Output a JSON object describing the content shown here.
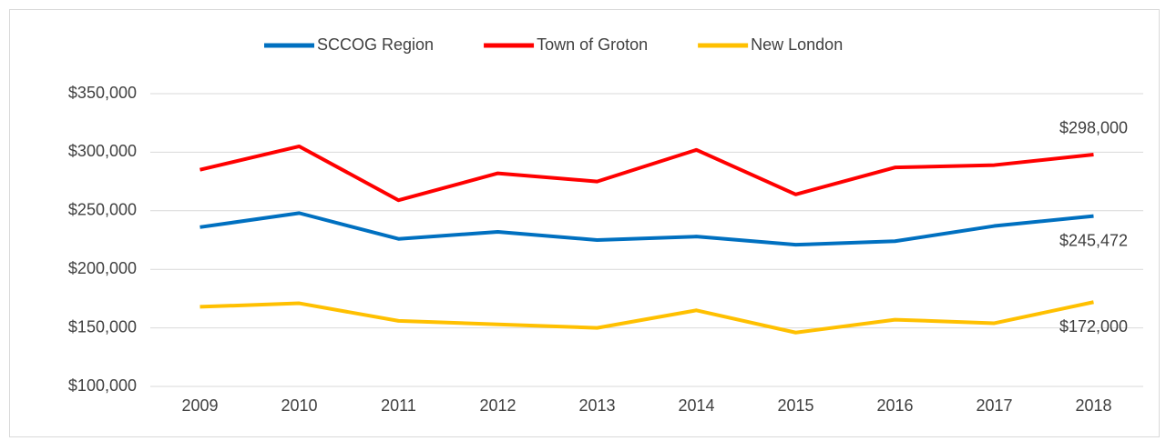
{
  "chart_data": {
    "type": "line",
    "categories": [
      "2009",
      "2010",
      "2011",
      "2012",
      "2013",
      "2014",
      "2015",
      "2016",
      "2017",
      "2018"
    ],
    "series": [
      {
        "name": "SCCOG Region",
        "color": "#0070c0",
        "values": [
          236000,
          248000,
          226000,
          232000,
          225000,
          228000,
          221000,
          224000,
          237000,
          245472
        ],
        "value_labels": [
          null,
          null,
          null,
          null,
          null,
          null,
          null,
          null,
          null,
          "$245,472"
        ]
      },
      {
        "name": "Town of Groton",
        "color": "#ff0000",
        "values": [
          285000,
          305000,
          259000,
          282000,
          275000,
          302000,
          264000,
          287000,
          289000,
          298000
        ],
        "value_labels": [
          null,
          null,
          null,
          null,
          null,
          null,
          null,
          null,
          null,
          "$298,000"
        ]
      },
      {
        "name": "New London",
        "color": "#ffc000",
        "values": [
          168000,
          171000,
          156000,
          153000,
          150000,
          165000,
          146000,
          157000,
          154000,
          172000
        ],
        "value_labels": [
          null,
          null,
          null,
          null,
          null,
          null,
          null,
          null,
          null,
          "$172,000"
        ]
      }
    ],
    "ylim": [
      100000,
      350000
    ],
    "yticks": [
      {
        "value": 100000,
        "label": "$100,000"
      },
      {
        "value": 150000,
        "label": "$150,000"
      },
      {
        "value": 200000,
        "label": "$200,000"
      },
      {
        "value": 250000,
        "label": "$250,000"
      },
      {
        "value": 300000,
        "label": "$300,000"
      },
      {
        "value": 350000,
        "label": "$350,000"
      }
    ],
    "grid": true,
    "legend": "top"
  }
}
